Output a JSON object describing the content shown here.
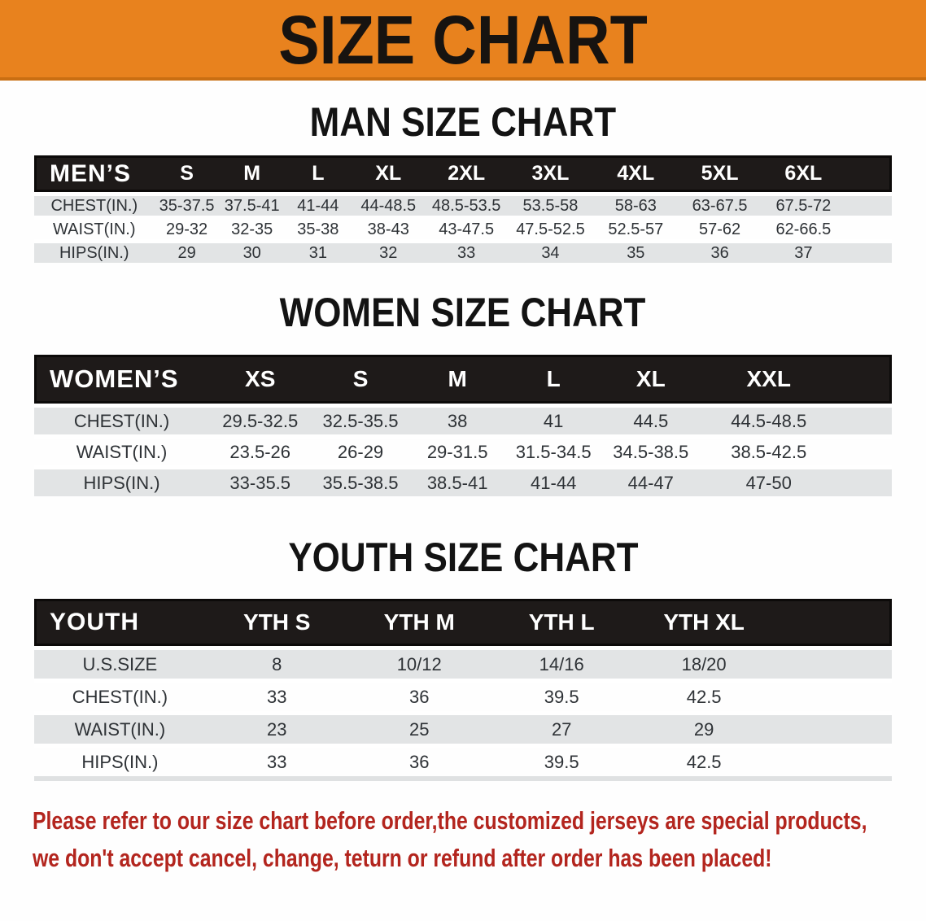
{
  "banner": {
    "title": "SIZE CHART"
  },
  "headings": {
    "men": "MAN SIZE CHART",
    "women": "WOMEN SIZE CHART",
    "youth": "YOUTH SIZE CHART"
  },
  "tables": {
    "men": {
      "header_label": "MEN’S",
      "sizes": [
        "S",
        "M",
        "L",
        "XL",
        "2XL",
        "3XL",
        "4XL",
        "5XL",
        "6XL"
      ],
      "rows": [
        {
          "label": "CHEST(IN.)",
          "values": [
            "35-37.5",
            "37.5-41",
            "41-44",
            "44-48.5",
            "48.5-53.5",
            "53.5-58",
            "58-63",
            "63-67.5",
            "67.5-72"
          ]
        },
        {
          "label": "WAIST(IN.)",
          "values": [
            "29-32",
            "32-35",
            "35-38",
            "38-43",
            "43-47.5",
            "47.5-52.5",
            "52.5-57",
            "57-62",
            "62-66.5"
          ]
        },
        {
          "label": "HIPS(IN.)",
          "values": [
            "29",
            "30",
            "31",
            "32",
            "33",
            "34",
            "35",
            "36",
            "37"
          ]
        }
      ]
    },
    "women": {
      "header_label": "WOMEN’S",
      "sizes": [
        "XS",
        "S",
        "M",
        "L",
        "XL",
        "XXL"
      ],
      "rows": [
        {
          "label": "CHEST(IN.)",
          "values": [
            "29.5-32.5",
            "32.5-35.5",
            "38",
            "41",
            "44.5",
            "44.5-48.5"
          ]
        },
        {
          "label": "WAIST(IN.)",
          "values": [
            "23.5-26",
            "26-29",
            "29-31.5",
            "31.5-34.5",
            "34.5-38.5",
            "38.5-42.5"
          ]
        },
        {
          "label": "HIPS(IN.)",
          "values": [
            "33-35.5",
            "35.5-38.5",
            "38.5-41",
            "41-44",
            "44-47",
            "47-50"
          ]
        }
      ]
    },
    "youth": {
      "header_label": "YOUTH",
      "sizes": [
        "YTH S",
        "YTH M",
        "YTH L",
        "YTH XL"
      ],
      "rows": [
        {
          "label": "U.S.SIZE",
          "values": [
            "8",
            "10/12",
            "14/16",
            "18/20"
          ]
        },
        {
          "label": "CHEST(IN.)",
          "values": [
            "33",
            "36",
            "39.5",
            "42.5"
          ]
        },
        {
          "label": "WAIST(IN.)",
          "values": [
            "23",
            "25",
            "27",
            "29"
          ]
        },
        {
          "label": "HIPS(IN.)",
          "values": [
            "33",
            "36",
            "39.5",
            "42.5"
          ]
        }
      ]
    }
  },
  "footer": {
    "line1": "Please refer to our size chart before order,the customized jerseys are special products,",
    "line2": "we don't accept cancel, change, teturn or refund after order has been placed!"
  },
  "colors": {
    "banner_orange": "#E8821E",
    "table_header_black": "#1E1A19",
    "row_gray": "#E2E4E5",
    "footer_red": "#B3251E"
  }
}
